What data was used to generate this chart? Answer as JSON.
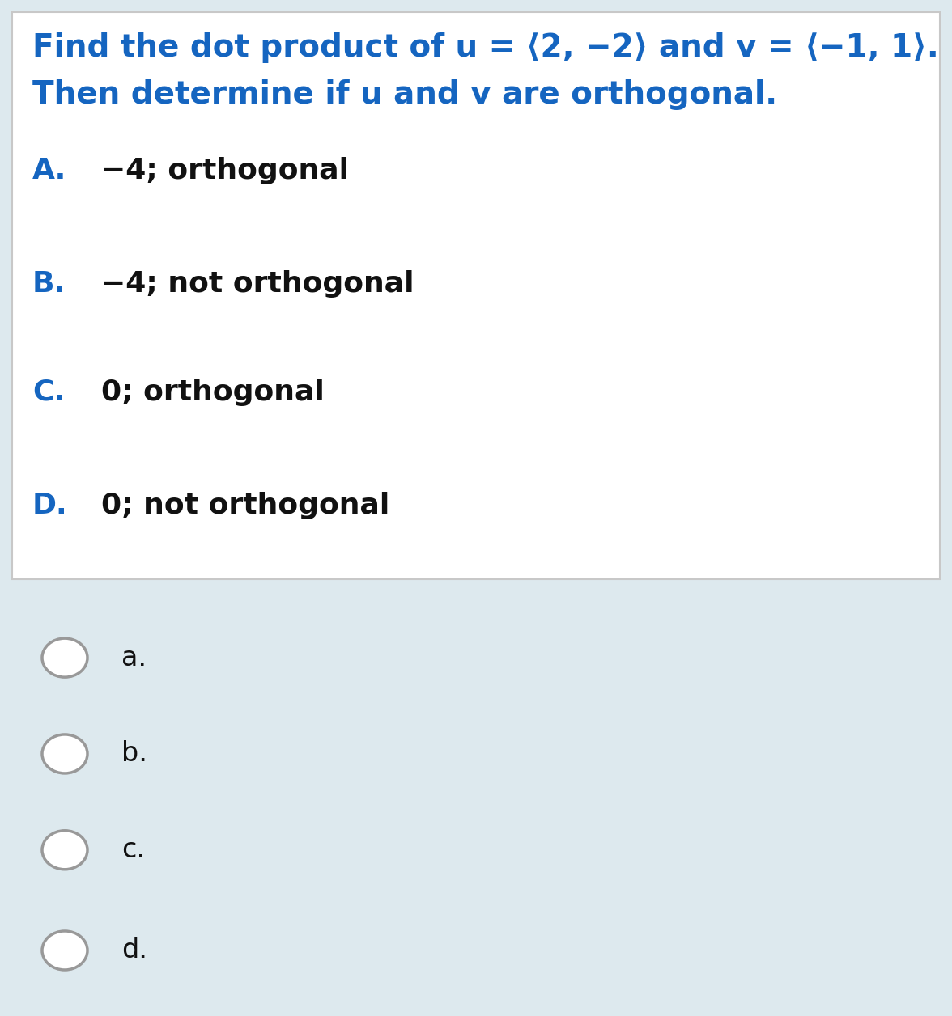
{
  "bg_color": "#dde9ee",
  "question_bg": "#ffffff",
  "question_border": "#c8c8c8",
  "question_text_line1": "Find the dot product of u = ⟨2, −2⟩ and v = ⟨−1, 1⟩.",
  "question_text_line2": "Then determine if u and v are orthogonal.",
  "question_color": "#1565c0",
  "question_fontsize": 28,
  "options": [
    {
      "label": "A.",
      "text": "−4; orthogonal"
    },
    {
      "label": "B.",
      "text": "−4; not orthogonal"
    },
    {
      "label": "C.",
      "text": "0; orthogonal"
    },
    {
      "label": "D.",
      "text": "0; not orthogonal"
    }
  ],
  "label_color": "#1565c0",
  "option_text_color": "#111111",
  "option_fontsize": 26,
  "radio_labels": [
    "a.",
    "b.",
    "c.",
    "d."
  ],
  "radio_fontsize": 24,
  "radio_text_color": "#111111",
  "radio_circle_facecolor": "#ffffff",
  "radio_circle_edgecolor": "#999999",
  "fig_width": 11.76,
  "fig_height": 12.56,
  "dpi": 100
}
